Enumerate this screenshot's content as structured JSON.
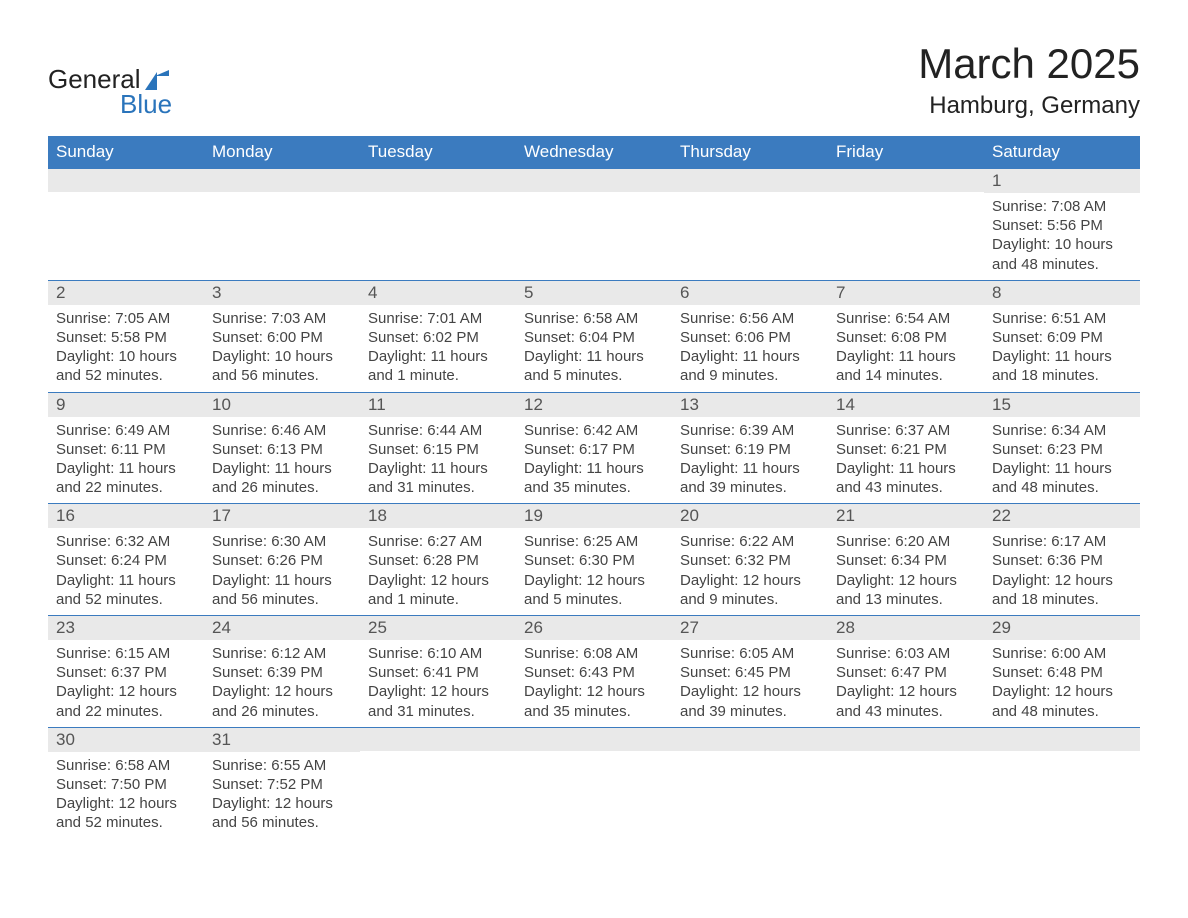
{
  "logo": {
    "word1": "General",
    "word2": "Blue"
  },
  "title": "March 2025",
  "subtitle": "Hamburg, Germany",
  "colors": {
    "header_bg": "#3b7bbf",
    "header_text": "#ffffff",
    "num_row_bg": "#e9e9e9",
    "body_text": "#444444",
    "accent": "#2a74bb"
  },
  "fontsizes": {
    "title": 42,
    "subtitle": 24,
    "dayhead": 17,
    "daynum": 17,
    "body": 15,
    "logo": 26
  },
  "daynames": [
    "Sunday",
    "Monday",
    "Tuesday",
    "Wednesday",
    "Thursday",
    "Friday",
    "Saturday"
  ],
  "weeks": [
    [
      {
        "blank": true
      },
      {
        "blank": true
      },
      {
        "blank": true
      },
      {
        "blank": true
      },
      {
        "blank": true
      },
      {
        "blank": true
      },
      {
        "n": "1",
        "sunrise": "Sunrise: 7:08 AM",
        "sunset": "Sunset: 5:56 PM",
        "daylight": "Daylight: 10 hours and 48 minutes."
      }
    ],
    [
      {
        "n": "2",
        "sunrise": "Sunrise: 7:05 AM",
        "sunset": "Sunset: 5:58 PM",
        "daylight": "Daylight: 10 hours and 52 minutes."
      },
      {
        "n": "3",
        "sunrise": "Sunrise: 7:03 AM",
        "sunset": "Sunset: 6:00 PM",
        "daylight": "Daylight: 10 hours and 56 minutes."
      },
      {
        "n": "4",
        "sunrise": "Sunrise: 7:01 AM",
        "sunset": "Sunset: 6:02 PM",
        "daylight": "Daylight: 11 hours and 1 minute."
      },
      {
        "n": "5",
        "sunrise": "Sunrise: 6:58 AM",
        "sunset": "Sunset: 6:04 PM",
        "daylight": "Daylight: 11 hours and 5 minutes."
      },
      {
        "n": "6",
        "sunrise": "Sunrise: 6:56 AM",
        "sunset": "Sunset: 6:06 PM",
        "daylight": "Daylight: 11 hours and 9 minutes."
      },
      {
        "n": "7",
        "sunrise": "Sunrise: 6:54 AM",
        "sunset": "Sunset: 6:08 PM",
        "daylight": "Daylight: 11 hours and 14 minutes."
      },
      {
        "n": "8",
        "sunrise": "Sunrise: 6:51 AM",
        "sunset": "Sunset: 6:09 PM",
        "daylight": "Daylight: 11 hours and 18 minutes."
      }
    ],
    [
      {
        "n": "9",
        "sunrise": "Sunrise: 6:49 AM",
        "sunset": "Sunset: 6:11 PM",
        "daylight": "Daylight: 11 hours and 22 minutes."
      },
      {
        "n": "10",
        "sunrise": "Sunrise: 6:46 AM",
        "sunset": "Sunset: 6:13 PM",
        "daylight": "Daylight: 11 hours and 26 minutes."
      },
      {
        "n": "11",
        "sunrise": "Sunrise: 6:44 AM",
        "sunset": "Sunset: 6:15 PM",
        "daylight": "Daylight: 11 hours and 31 minutes."
      },
      {
        "n": "12",
        "sunrise": "Sunrise: 6:42 AM",
        "sunset": "Sunset: 6:17 PM",
        "daylight": "Daylight: 11 hours and 35 minutes."
      },
      {
        "n": "13",
        "sunrise": "Sunrise: 6:39 AM",
        "sunset": "Sunset: 6:19 PM",
        "daylight": "Daylight: 11 hours and 39 minutes."
      },
      {
        "n": "14",
        "sunrise": "Sunrise: 6:37 AM",
        "sunset": "Sunset: 6:21 PM",
        "daylight": "Daylight: 11 hours and 43 minutes."
      },
      {
        "n": "15",
        "sunrise": "Sunrise: 6:34 AM",
        "sunset": "Sunset: 6:23 PM",
        "daylight": "Daylight: 11 hours and 48 minutes."
      }
    ],
    [
      {
        "n": "16",
        "sunrise": "Sunrise: 6:32 AM",
        "sunset": "Sunset: 6:24 PM",
        "daylight": "Daylight: 11 hours and 52 minutes."
      },
      {
        "n": "17",
        "sunrise": "Sunrise: 6:30 AM",
        "sunset": "Sunset: 6:26 PM",
        "daylight": "Daylight: 11 hours and 56 minutes."
      },
      {
        "n": "18",
        "sunrise": "Sunrise: 6:27 AM",
        "sunset": "Sunset: 6:28 PM",
        "daylight": "Daylight: 12 hours and 1 minute."
      },
      {
        "n": "19",
        "sunrise": "Sunrise: 6:25 AM",
        "sunset": "Sunset: 6:30 PM",
        "daylight": "Daylight: 12 hours and 5 minutes."
      },
      {
        "n": "20",
        "sunrise": "Sunrise: 6:22 AM",
        "sunset": "Sunset: 6:32 PM",
        "daylight": "Daylight: 12 hours and 9 minutes."
      },
      {
        "n": "21",
        "sunrise": "Sunrise: 6:20 AM",
        "sunset": "Sunset: 6:34 PM",
        "daylight": "Daylight: 12 hours and 13 minutes."
      },
      {
        "n": "22",
        "sunrise": "Sunrise: 6:17 AM",
        "sunset": "Sunset: 6:36 PM",
        "daylight": "Daylight: 12 hours and 18 minutes."
      }
    ],
    [
      {
        "n": "23",
        "sunrise": "Sunrise: 6:15 AM",
        "sunset": "Sunset: 6:37 PM",
        "daylight": "Daylight: 12 hours and 22 minutes."
      },
      {
        "n": "24",
        "sunrise": "Sunrise: 6:12 AM",
        "sunset": "Sunset: 6:39 PM",
        "daylight": "Daylight: 12 hours and 26 minutes."
      },
      {
        "n": "25",
        "sunrise": "Sunrise: 6:10 AM",
        "sunset": "Sunset: 6:41 PM",
        "daylight": "Daylight: 12 hours and 31 minutes."
      },
      {
        "n": "26",
        "sunrise": "Sunrise: 6:08 AM",
        "sunset": "Sunset: 6:43 PM",
        "daylight": "Daylight: 12 hours and 35 minutes."
      },
      {
        "n": "27",
        "sunrise": "Sunrise: 6:05 AM",
        "sunset": "Sunset: 6:45 PM",
        "daylight": "Daylight: 12 hours and 39 minutes."
      },
      {
        "n": "28",
        "sunrise": "Sunrise: 6:03 AM",
        "sunset": "Sunset: 6:47 PM",
        "daylight": "Daylight: 12 hours and 43 minutes."
      },
      {
        "n": "29",
        "sunrise": "Sunrise: 6:00 AM",
        "sunset": "Sunset: 6:48 PM",
        "daylight": "Daylight: 12 hours and 48 minutes."
      }
    ],
    [
      {
        "n": "30",
        "sunrise": "Sunrise: 6:58 AM",
        "sunset": "Sunset: 7:50 PM",
        "daylight": "Daylight: 12 hours and 52 minutes."
      },
      {
        "n": "31",
        "sunrise": "Sunrise: 6:55 AM",
        "sunset": "Sunset: 7:52 PM",
        "daylight": "Daylight: 12 hours and 56 minutes."
      },
      {
        "blank": true
      },
      {
        "blank": true
      },
      {
        "blank": true
      },
      {
        "blank": true
      },
      {
        "blank": true
      }
    ]
  ]
}
